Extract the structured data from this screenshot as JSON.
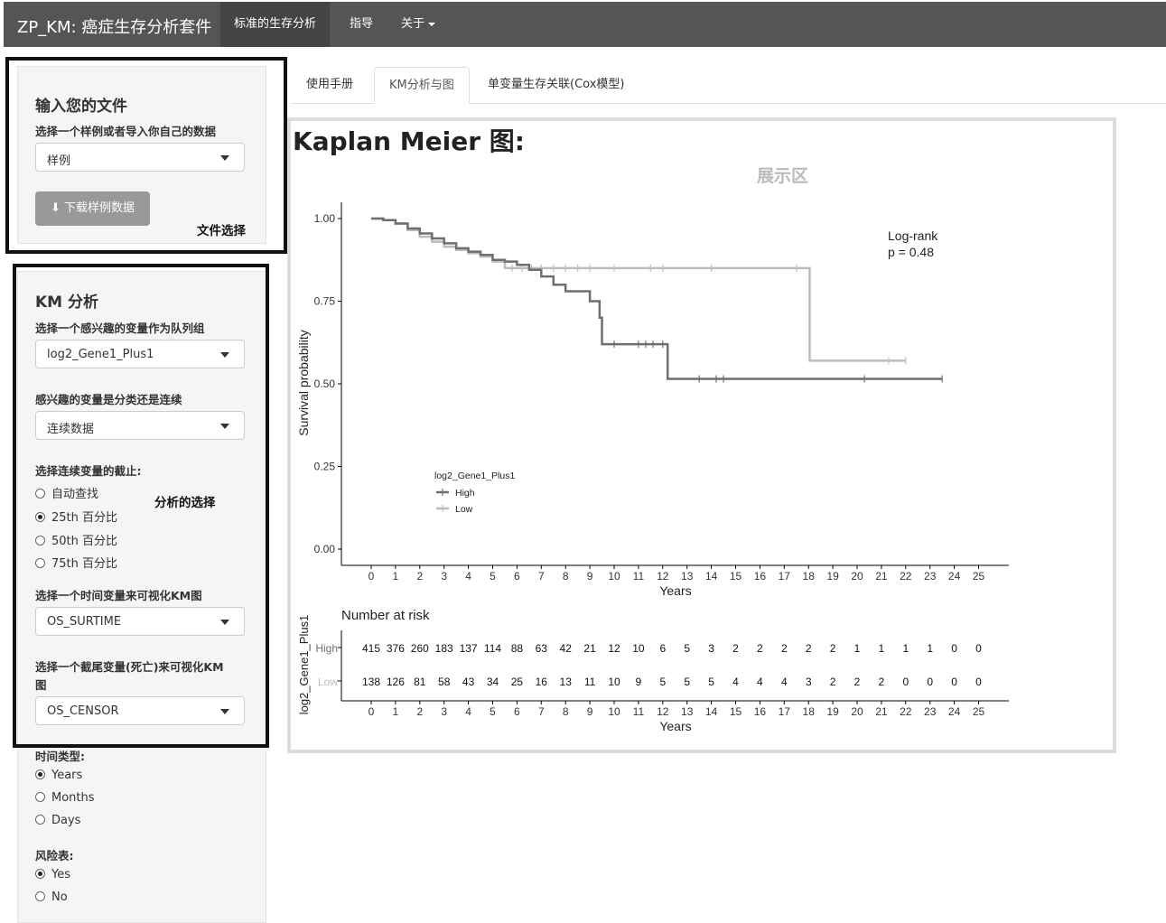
{
  "navbar": {
    "brand": "ZP_KM: 癌症生存分析套件",
    "items": [
      "标准的生存分析",
      "指导",
      "关于"
    ]
  },
  "file_panel": {
    "title": "输入您的文件",
    "select_label": "选择一个样例或者导入你自己的数据",
    "select_value": "样例",
    "download_label": "下载样例数据",
    "annotation": "文件选择"
  },
  "km_panel": {
    "title": "KM 分析",
    "group_var_label": "选择一个感兴趣的变量作为队列组",
    "group_var_value": "log2_Gene1_Plus1",
    "var_type_label": "感兴趣的变量是分类还是连续",
    "var_type_value": "连续数据",
    "cutoff_label": "选择连续变量的截止:",
    "cutoff_options": [
      "自动查找",
      "25th 百分比",
      "50th 百分比",
      "75th 百分比"
    ],
    "cutoff_selected": 1,
    "annotation": "分析的选择",
    "time_var_label": "选择一个时间变量来可视化KM图",
    "time_var_value": "OS_SURTIME",
    "censor_var_label_1": "选择一个截尾变量(死亡)来可视化KM",
    "censor_var_label_2": "图",
    "censor_var_value": "OS_CENSOR",
    "time_type_label": "时间类型:",
    "time_type_options": [
      "Years",
      "Months",
      "Days"
    ],
    "time_type_selected": 0,
    "risk_table_label": "风险表:",
    "risk_table_options": [
      "Yes",
      "No"
    ],
    "risk_table_selected": 0
  },
  "tabs": [
    "使用手册",
    "KM分析与图",
    "单变量生存关联(Cox模型)"
  ],
  "active_tab": 1,
  "main": {
    "plot_title": "Kaplan Meier 图:",
    "display_annotation": "展示区"
  },
  "chart_data": {
    "type": "line",
    "subtype": "kaplan-meier step",
    "xlabel": "Years",
    "ylabel": "Survival probability",
    "x_ticks": [
      0,
      1,
      2,
      3,
      4,
      5,
      6,
      7,
      8,
      9,
      10,
      11,
      12,
      13,
      14,
      15,
      16,
      17,
      18,
      19,
      20,
      21,
      22,
      23,
      24,
      25
    ],
    "y_ticks": [
      "0.00",
      "0.25",
      "0.50",
      "0.75",
      "1.00"
    ],
    "xlim": [
      0,
      25
    ],
    "ylim": [
      0,
      1
    ],
    "legend_title": "log2_Gene1_Plus1",
    "legend_position": "bottom-left inside",
    "annotation": [
      "Log-rank",
      "p = 0.48"
    ],
    "series": [
      {
        "name": "High",
        "color": "#6e6e6e",
        "points": [
          [
            0,
            1.0
          ],
          [
            0.5,
            0.995
          ],
          [
            1,
            0.985
          ],
          [
            1.5,
            0.97
          ],
          [
            2,
            0.955
          ],
          [
            2.5,
            0.94
          ],
          [
            3,
            0.925
          ],
          [
            3.5,
            0.91
          ],
          [
            4,
            0.9
          ],
          [
            4.5,
            0.89
          ],
          [
            5,
            0.875
          ],
          [
            5.5,
            0.87
          ],
          [
            6,
            0.86
          ],
          [
            6.5,
            0.845
          ],
          [
            7,
            0.825
          ],
          [
            7.5,
            0.8
          ],
          [
            8,
            0.78
          ],
          [
            9,
            0.75
          ],
          [
            9.4,
            0.7
          ],
          [
            9.5,
            0.62
          ],
          [
            12,
            0.62
          ],
          [
            12.2,
            0.515
          ],
          [
            23.5,
            0.515
          ]
        ],
        "censor_times": [
          10,
          11,
          11.3,
          11.6,
          12,
          13.5,
          14.2,
          14.5,
          20.3,
          23.5
        ]
      },
      {
        "name": "Low",
        "color": "#bdbdbd",
        "points": [
          [
            0,
            1.0
          ],
          [
            0.5,
            0.995
          ],
          [
            1,
            0.985
          ],
          [
            1.5,
            0.965
          ],
          [
            2,
            0.945
          ],
          [
            2.5,
            0.93
          ],
          [
            3,
            0.915
          ],
          [
            3.5,
            0.905
          ],
          [
            4,
            0.895
          ],
          [
            4.5,
            0.885
          ],
          [
            5,
            0.87
          ],
          [
            5.5,
            0.85
          ],
          [
            18,
            0.85
          ],
          [
            18.05,
            0.57
          ],
          [
            22,
            0.57
          ]
        ],
        "censor_times": [
          5.8,
          6.2,
          6.6,
          7,
          7.5,
          8,
          8.5,
          9,
          10,
          11.5,
          12,
          14,
          17.5,
          21.3,
          22
        ]
      }
    ],
    "risk_table": {
      "title": "Number at risk",
      "ylabel": "log2_Gene1_Plus1",
      "rows": [
        {
          "name": "High",
          "color": "#6e6e6e",
          "values": [
            415,
            376,
            260,
            183,
            137,
            114,
            88,
            63,
            42,
            21,
            12,
            10,
            6,
            5,
            3,
            2,
            2,
            2,
            2,
            2,
            1,
            1,
            1,
            1,
            0,
            0
          ]
        },
        {
          "name": "Low",
          "color": "#bdbdbd",
          "values": [
            138,
            126,
            81,
            58,
            43,
            34,
            25,
            16,
            13,
            11,
            10,
            9,
            5,
            5,
            5,
            4,
            4,
            4,
            3,
            2,
            2,
            2,
            0,
            0,
            0,
            0
          ]
        }
      ],
      "xlabel": "Years"
    }
  }
}
